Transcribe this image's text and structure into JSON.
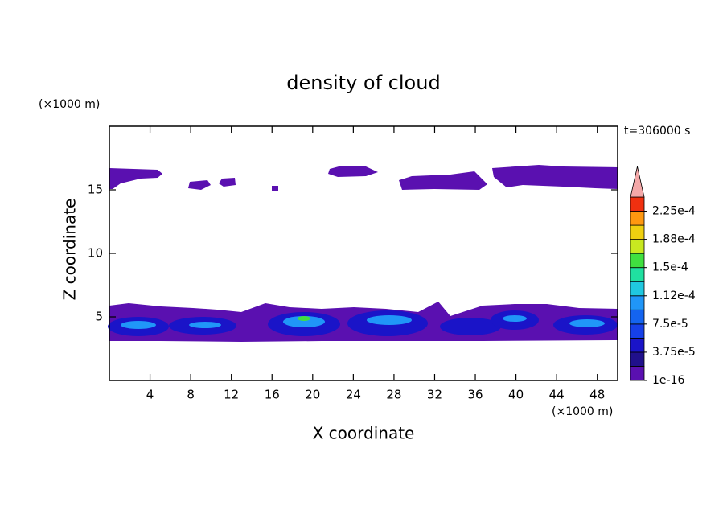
{
  "chart_data": {
    "type": "contour",
    "title": "density of cloud",
    "x_label": "X coordinate",
    "y_label": "Z coordinate",
    "x_unit": "(×1000 m)",
    "y_unit": "(×1000 m)",
    "time_label": "t=306000 s",
    "xlim": [
      0,
      50
    ],
    "ylim": [
      0,
      20
    ],
    "xticks": [
      4,
      8,
      12,
      16,
      20,
      24,
      28,
      32,
      36,
      40,
      44,
      48
    ],
    "yticks": [
      5,
      10,
      15
    ],
    "colorbar": {
      "lim": [
        1e-16,
        0.00024375
      ],
      "colors": [
        "#5a10b0",
        "#20108c",
        "#1a14c8",
        "#1640e8",
        "#1464f0",
        "#2096f8",
        "#20c8e0",
        "#20e0a0",
        "#40e040",
        "#c8e820",
        "#f0d010",
        "#ff9810",
        "#f03010"
      ],
      "extend_color": "#f4a8a8",
      "ticks": [
        {
          "value": 1e-16,
          "label": "1e-16"
        },
        {
          "value": 3.75e-05,
          "label": "3.75e-5"
        },
        {
          "value": 7.5e-05,
          "label": "7.5e-5"
        },
        {
          "value": 0.0001125,
          "label": "1.12e-4"
        },
        {
          "value": 0.00015,
          "label": "1.5e-4"
        },
        {
          "value": 0.0001875,
          "label": "1.88e-4"
        },
        {
          "value": 0.000225,
          "label": "2.25e-4"
        }
      ]
    }
  }
}
